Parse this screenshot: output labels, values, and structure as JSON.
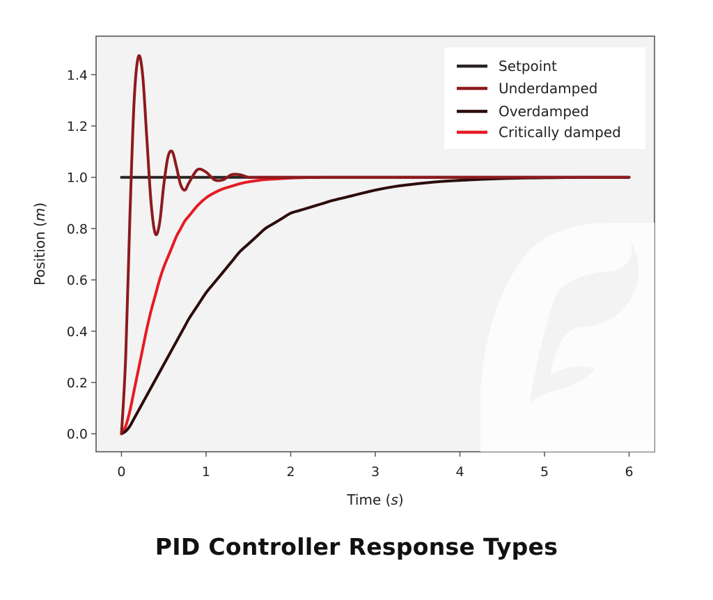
{
  "chart_data": {
    "type": "line",
    "title": "PID Controller Response Types",
    "xlabel": "Time",
    "xlabel_unit": "s",
    "ylabel": "Position",
    "ylabel_unit": "m",
    "xlim": [
      -0.3,
      6.3
    ],
    "ylim": [
      -0.07,
      1.55
    ],
    "xticks": [
      0,
      1,
      2,
      3,
      4,
      5,
      6
    ],
    "xtick_labels": [
      "0",
      "1",
      "2",
      "3",
      "4",
      "5",
      "6"
    ],
    "yticks": [
      0.0,
      0.2,
      0.4,
      0.6,
      0.8,
      1.0,
      1.2,
      1.4
    ],
    "ytick_labels": [
      "0.0",
      "0.2",
      "0.4",
      "0.6",
      "0.8",
      "1.0",
      "1.2",
      "1.4"
    ],
    "grid": false,
    "legend_position": "top-right",
    "x": [
      0,
      0.05,
      0.1,
      0.15,
      0.2,
      0.25,
      0.3,
      0.35,
      0.4,
      0.45,
      0.5,
      0.55,
      0.6,
      0.65,
      0.7,
      0.75,
      0.8,
      0.9,
      1.0,
      1.1,
      1.2,
      1.3,
      1.4,
      1.5,
      1.6,
      1.7,
      1.8,
      1.9,
      2.0,
      2.1,
      2.2,
      2.3,
      2.4,
      2.5,
      2.75,
      3.0,
      3.25,
      3.5,
      3.75,
      4.0,
      4.25,
      4.5,
      4.75,
      5.0,
      5.25,
      5.5,
      5.75,
      6.0
    ],
    "series": [
      {
        "name": "Setpoint",
        "color": "#2b2422",
        "values": [
          1.0,
          1.0,
          1.0,
          1.0,
          1.0,
          1.0,
          1.0,
          1.0,
          1.0,
          1.0,
          1.0,
          1.0,
          1.0,
          1.0,
          1.0,
          1.0,
          1.0,
          1.0,
          1.0,
          1.0,
          1.0,
          1.0,
          1.0,
          1.0,
          1.0,
          1.0,
          1.0,
          1.0,
          1.0,
          1.0,
          1.0,
          1.0,
          1.0,
          1.0,
          1.0,
          1.0,
          1.0,
          1.0,
          1.0,
          1.0,
          1.0,
          1.0,
          1.0,
          1.0,
          1.0,
          1.0,
          1.0,
          1.0
        ]
      },
      {
        "name": "Underdamped",
        "color": "#8c1a1d",
        "values": [
          0.0,
          0.3,
          0.85,
          1.3,
          1.47,
          1.4,
          1.15,
          0.9,
          0.78,
          0.82,
          0.97,
          1.08,
          1.1,
          1.04,
          0.97,
          0.95,
          0.98,
          1.03,
          1.02,
          0.99,
          0.99,
          1.01,
          1.01,
          1.0,
          1.0,
          1.0,
          1.0,
          1.0,
          1.0,
          1.0,
          1.0,
          1.0,
          1.0,
          1.0,
          1.0,
          1.0,
          1.0,
          1.0,
          1.0,
          1.0,
          1.0,
          1.0,
          1.0,
          1.0,
          1.0,
          1.0,
          1.0,
          1.0
        ]
      },
      {
        "name": "Overdamped",
        "color": "#2d0c0c",
        "values": [
          0.0,
          0.01,
          0.03,
          0.06,
          0.09,
          0.12,
          0.15,
          0.18,
          0.21,
          0.24,
          0.27,
          0.3,
          0.33,
          0.36,
          0.39,
          0.42,
          0.45,
          0.5,
          0.55,
          0.59,
          0.63,
          0.67,
          0.71,
          0.74,
          0.77,
          0.8,
          0.82,
          0.84,
          0.86,
          0.87,
          0.88,
          0.89,
          0.9,
          0.91,
          0.93,
          0.95,
          0.965,
          0.975,
          0.983,
          0.988,
          0.992,
          0.995,
          0.997,
          0.998,
          0.999,
          1.0,
          1.0,
          1.0
        ]
      },
      {
        "name": "Critically damped",
        "color": "#e51b23",
        "values": [
          0.0,
          0.03,
          0.09,
          0.17,
          0.25,
          0.33,
          0.41,
          0.48,
          0.54,
          0.6,
          0.65,
          0.69,
          0.73,
          0.77,
          0.8,
          0.83,
          0.85,
          0.89,
          0.92,
          0.94,
          0.955,
          0.965,
          0.975,
          0.982,
          0.987,
          0.991,
          0.993,
          0.995,
          0.997,
          0.998,
          0.999,
          0.999,
          1.0,
          1.0,
          1.0,
          1.0,
          1.0,
          1.0,
          1.0,
          1.0,
          1.0,
          1.0,
          1.0,
          1.0,
          1.0,
          1.0,
          1.0,
          1.0
        ]
      }
    ]
  }
}
